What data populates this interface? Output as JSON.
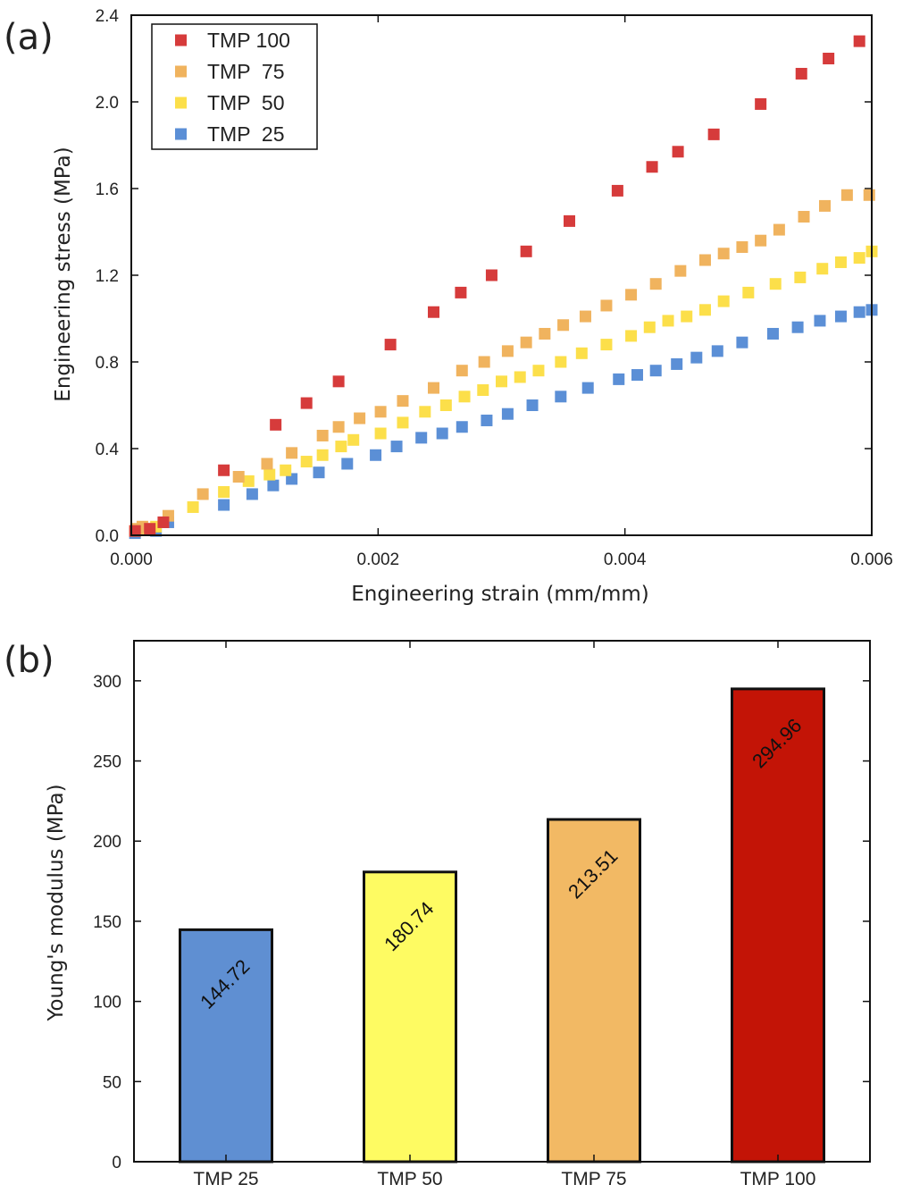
{
  "chart_data": [
    {
      "panel_label": "(a)",
      "type": "scatter",
      "xlabel": "Engineering strain (mm/mm)",
      "ylabel": "Engineering stress (MPa)",
      "xlim": [
        0,
        0.006
      ],
      "ylim": [
        0,
        2.4
      ],
      "xticks": [
        "0.000",
        "0.002",
        "0.004",
        "0.006"
      ],
      "yticks": [
        "0.0",
        "0.4",
        "0.8",
        "1.2",
        "1.6",
        "2.0",
        "2.4"
      ],
      "legend_position": "top-left",
      "series": [
        {
          "name": "TMP 100",
          "color": "#d63b3b",
          "x": [
            3e-05,
            0.00015,
            0.00026,
            0.00075,
            0.00117,
            0.00142,
            0.00168,
            0.0021,
            0.00245,
            0.00267,
            0.00292,
            0.0032,
            0.00355,
            0.00394,
            0.00422,
            0.00443,
            0.00472,
            0.0051,
            0.00543,
            0.00565,
            0.0059
          ],
          "y": [
            0.02,
            0.03,
            0.06,
            0.3,
            0.51,
            0.61,
            0.71,
            0.88,
            1.03,
            1.12,
            1.2,
            1.31,
            1.45,
            1.59,
            1.7,
            1.77,
            1.85,
            1.99,
            2.13,
            2.2,
            2.28
          ]
        },
        {
          "name": "TMP  75",
          "color": "#f0b35e",
          "x": [
            5e-05,
            9e-05,
            0.0003,
            0.00058,
            0.00087,
            0.0011,
            0.0013,
            0.00155,
            0.00168,
            0.00185,
            0.00202,
            0.0022,
            0.00245,
            0.00268,
            0.00286,
            0.00305,
            0.0032,
            0.00335,
            0.0035,
            0.00368,
            0.00385,
            0.00405,
            0.00425,
            0.00445,
            0.00465,
            0.0048,
            0.00495,
            0.0051,
            0.00525,
            0.00545,
            0.00562,
            0.0058,
            0.00598
          ],
          "y": [
            0.03,
            0.04,
            0.09,
            0.19,
            0.27,
            0.33,
            0.38,
            0.46,
            0.5,
            0.54,
            0.57,
            0.62,
            0.68,
            0.76,
            0.8,
            0.85,
            0.89,
            0.93,
            0.97,
            1.01,
            1.06,
            1.11,
            1.16,
            1.22,
            1.27,
            1.3,
            1.33,
            1.36,
            1.41,
            1.47,
            1.52,
            1.57,
            1.57
          ]
        },
        {
          "name": "TMP  50",
          "color": "#fcdf4a",
          "x": [
            3e-05,
            0.00012,
            0.0002,
            0.0005,
            0.00075,
            0.00095,
            0.00112,
            0.00125,
            0.00142,
            0.00155,
            0.0017,
            0.0018,
            0.00202,
            0.0022,
            0.00238,
            0.00255,
            0.0027,
            0.00285,
            0.003,
            0.00315,
            0.0033,
            0.00348,
            0.00365,
            0.00385,
            0.00405,
            0.0042,
            0.00435,
            0.0045,
            0.00465,
            0.0048,
            0.005,
            0.00522,
            0.00542,
            0.0056,
            0.00575,
            0.0059,
            0.006
          ],
          "y": [
            0.02,
            0.03,
            0.04,
            0.13,
            0.2,
            0.25,
            0.28,
            0.3,
            0.34,
            0.37,
            0.41,
            0.44,
            0.47,
            0.52,
            0.57,
            0.6,
            0.64,
            0.67,
            0.71,
            0.73,
            0.76,
            0.8,
            0.84,
            0.88,
            0.92,
            0.96,
            0.99,
            1.01,
            1.04,
            1.08,
            1.12,
            1.16,
            1.19,
            1.23,
            1.26,
            1.28,
            1.31
          ]
        },
        {
          "name": "TMP  25",
          "color": "#5b8fd6",
          "x": [
            3e-05,
            0.0002,
            0.0003,
            0.00075,
            0.00098,
            0.00115,
            0.0013,
            0.00152,
            0.00175,
            0.00198,
            0.00215,
            0.00235,
            0.00252,
            0.00268,
            0.00288,
            0.00305,
            0.00325,
            0.00348,
            0.0037,
            0.00395,
            0.0041,
            0.00425,
            0.00442,
            0.00458,
            0.00475,
            0.00495,
            0.0052,
            0.0054,
            0.00558,
            0.00575,
            0.0059,
            0.006
          ],
          "y": [
            0.01,
            0.02,
            0.06,
            0.14,
            0.19,
            0.23,
            0.26,
            0.29,
            0.33,
            0.37,
            0.41,
            0.45,
            0.47,
            0.5,
            0.53,
            0.56,
            0.6,
            0.64,
            0.68,
            0.72,
            0.74,
            0.76,
            0.79,
            0.82,
            0.85,
            0.89,
            0.93,
            0.96,
            0.99,
            1.01,
            1.03,
            1.04
          ]
        }
      ]
    },
    {
      "panel_label": "(b)",
      "type": "bar",
      "ylabel": "Young's modulus (MPa)",
      "ylim": [
        0,
        325
      ],
      "yticks": [
        "0",
        "50",
        "100",
        "150",
        "200",
        "250",
        "300"
      ],
      "categories": [
        "TMP 25",
        "TMP 50",
        "TMP 75",
        "TMP 100"
      ],
      "values": [
        144.72,
        180.74,
        213.51,
        294.96
      ],
      "value_labels": [
        "144.72",
        "180.74",
        "213.51",
        "294.96"
      ],
      "colors": [
        "#5f8fd2",
        "#fefb62",
        "#f2b964",
        "#c31406"
      ]
    }
  ]
}
